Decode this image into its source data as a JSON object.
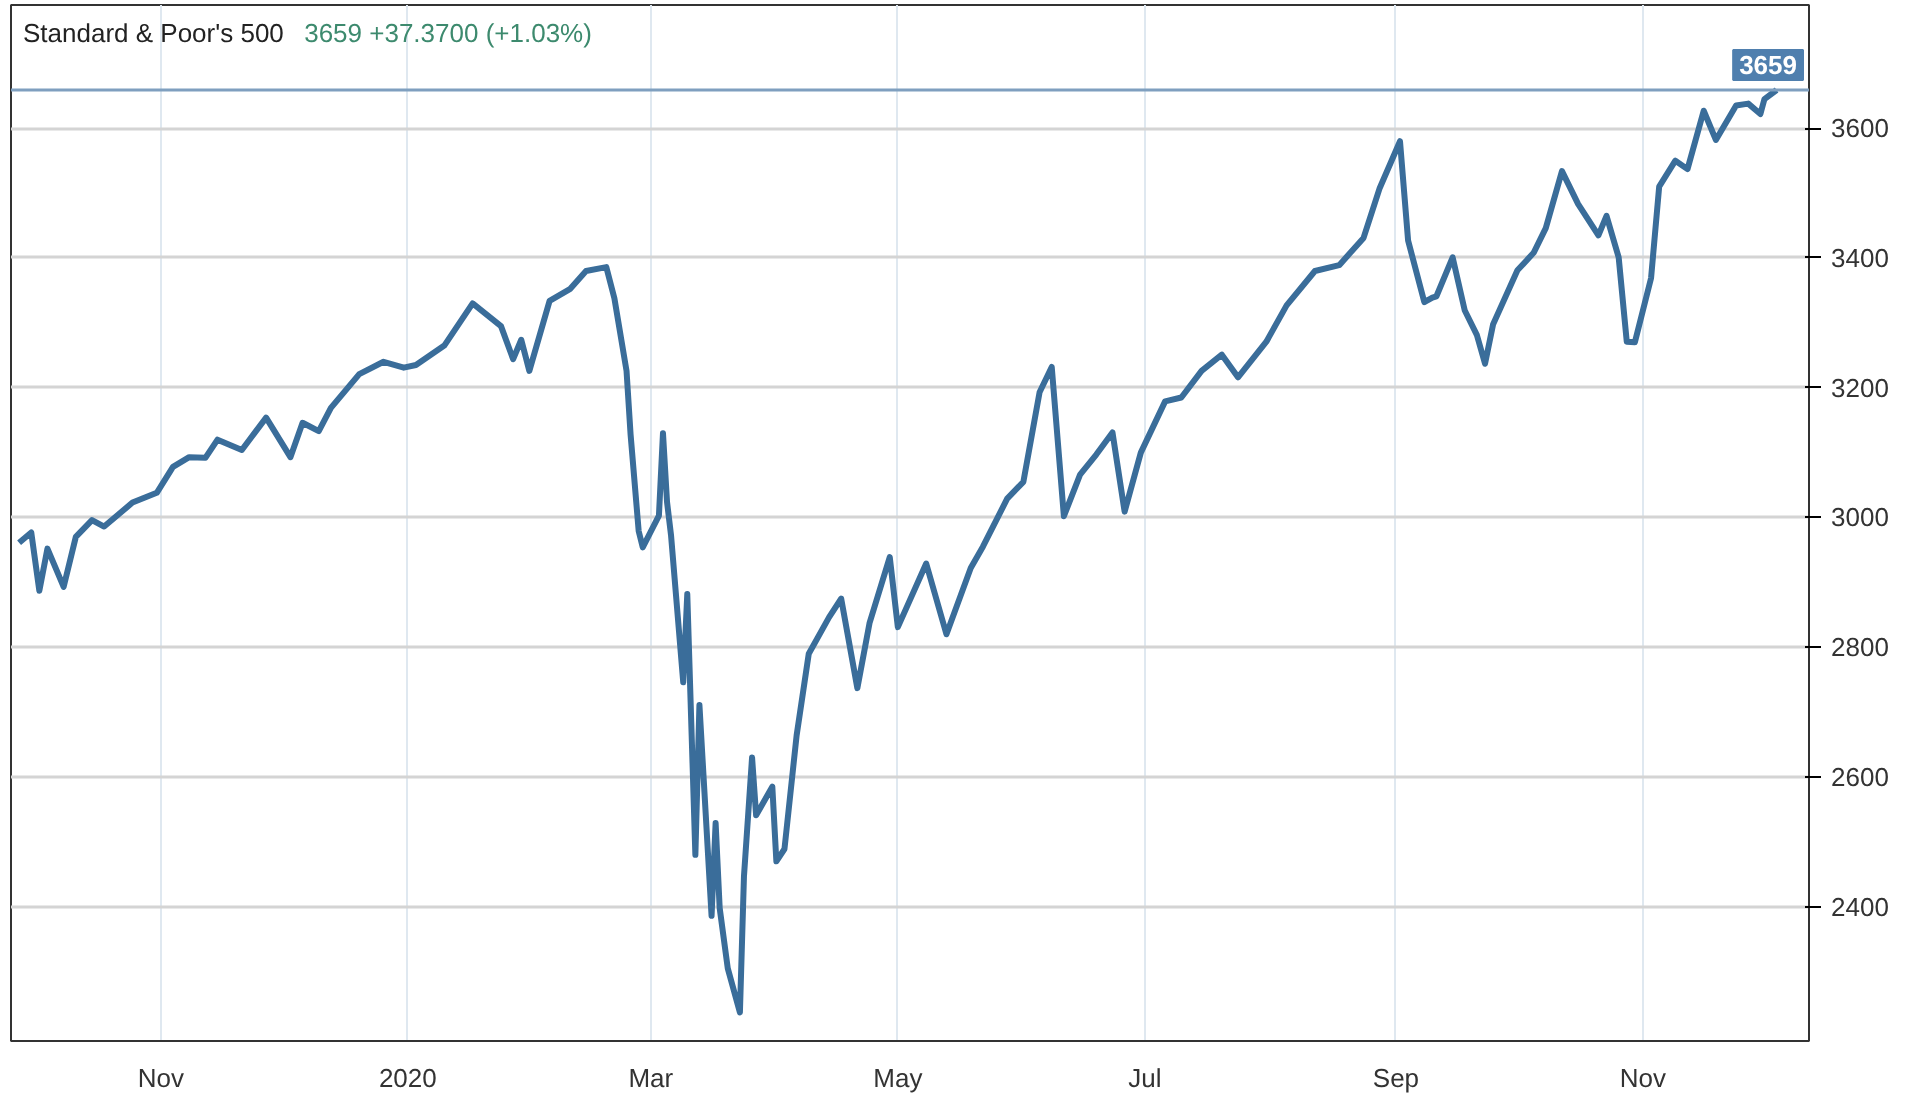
{
  "chart_data": {
    "type": "line",
    "title": "Standard & Poor's 500",
    "subtitle": "3659  +37.3700 (+1.03%)",
    "x": [
      "2019-09-27",
      "2019-09-30",
      "2019-10-02",
      "2019-10-04",
      "2019-10-08",
      "2019-10-11",
      "2019-10-15",
      "2019-10-18",
      "2019-10-25",
      "2019-10-31",
      "2019-11-04",
      "2019-11-08",
      "2019-11-12",
      "2019-11-15",
      "2019-11-21",
      "2019-11-27",
      "2019-12-03",
      "2019-12-06",
      "2019-12-10",
      "2019-12-13",
      "2019-12-20",
      "2019-12-26",
      "2019-12-31",
      "2020-01-03",
      "2020-01-10",
      "2020-01-17",
      "2020-01-24",
      "2020-01-27",
      "2020-01-29",
      "2020-01-31",
      "2020-02-05",
      "2020-02-10",
      "2020-02-14",
      "2020-02-19",
      "2020-02-21",
      "2020-02-24",
      "2020-02-25",
      "2020-02-27",
      "2020-02-28",
      "2020-03-03",
      "2020-03-04",
      "2020-03-05",
      "2020-03-06",
      "2020-03-09",
      "2020-03-10",
      "2020-03-12",
      "2020-03-13",
      "2020-03-16",
      "2020-03-17",
      "2020-03-18",
      "2020-03-20",
      "2020-03-23",
      "2020-03-24",
      "2020-03-26",
      "2020-03-27",
      "2020-03-31",
      "2020-04-01",
      "2020-04-03",
      "2020-04-06",
      "2020-04-09",
      "2020-04-14",
      "2020-04-17",
      "2020-04-21",
      "2020-04-24",
      "2020-04-29",
      "2020-05-01",
      "2020-05-08",
      "2020-05-13",
      "2020-05-19",
      "2020-05-22",
      "2020-05-28",
      "2020-06-01",
      "2020-06-05",
      "2020-06-08",
      "2020-06-11",
      "2020-06-15",
      "2020-06-19",
      "2020-06-23",
      "2020-06-26",
      "2020-06-30",
      "2020-07-06",
      "2020-07-10",
      "2020-07-15",
      "2020-07-20",
      "2020-07-24",
      "2020-07-31",
      "2020-08-05",
      "2020-08-12",
      "2020-08-18",
      "2020-08-24",
      "2020-08-28",
      "2020-09-02",
      "2020-09-04",
      "2020-09-08",
      "2020-09-10",
      "2020-09-11",
      "2020-09-15",
      "2020-09-18",
      "2020-09-21",
      "2020-09-23",
      "2020-09-25",
      "2020-10-01",
      "2020-10-05",
      "2020-10-08",
      "2020-10-12",
      "2020-10-16",
      "2020-10-21",
      "2020-10-23",
      "2020-10-26",
      "2020-10-28",
      "2020-10-30",
      "2020-11-03",
      "2020-11-05",
      "2020-11-09",
      "2020-11-12",
      "2020-11-16",
      "2020-11-19",
      "2020-11-24",
      "2020-11-27",
      "2020-11-30",
      "2020-12-01",
      "2020-12-04"
    ],
    "series": [
      {
        "color": "#3a6d9a",
        "values": [
          2961,
          2977,
          2887,
          2952,
          2893,
          2970,
          2996,
          2986,
          3023,
          3038,
          3078,
          3093,
          3092,
          3120,
          3104,
          3154,
          3093,
          3146,
          3133,
          3169,
          3221,
          3240,
          3231,
          3235,
          3265,
          3330,
          3295,
          3244,
          3274,
          3226,
          3334,
          3352,
          3380,
          3386,
          3338,
          3226,
          3128,
          2979,
          2954,
          3003,
          3130,
          3024,
          2972,
          2746,
          2882,
          2480,
          2711,
          2386,
          2529,
          2398,
          2305,
          2237,
          2447,
          2630,
          2541,
          2585,
          2470,
          2489,
          2664,
          2790,
          2846,
          2875,
          2737,
          2837,
          2939,
          2831,
          2929,
          2820,
          2922,
          2955,
          3029,
          3055,
          3193,
          3232,
          3002,
          3066,
          3097,
          3131,
          3009,
          3100,
          3179,
          3185,
          3226,
          3251,
          3216,
          3271,
          3327,
          3380,
          3389,
          3431,
          3508,
          3580,
          3427,
          3332,
          3339,
          3341,
          3401,
          3319,
          3281,
          3237,
          3298,
          3381,
          3408,
          3446,
          3534,
          3483,
          3435,
          3465,
          3401,
          3271,
          3270,
          3369,
          3510,
          3550,
          3537,
          3627,
          3582,
          3635,
          3638,
          3622,
          3645,
          3659
        ]
      }
    ],
    "xlim": [
      "2019-09-25",
      "2020-12-12"
    ],
    "ylim": [
      2193,
      3790
    ],
    "xticks": [
      {
        "value": "2019-11-01",
        "label": "Nov"
      },
      {
        "value": "2020-01-01",
        "label": "2020"
      },
      {
        "value": "2020-03-01",
        "label": "Mar"
      },
      {
        "value": "2020-05-01",
        "label": "May"
      },
      {
        "value": "2020-07-01",
        "label": "Jul"
      },
      {
        "value": "2020-09-01",
        "label": "Sep"
      },
      {
        "value": "2020-11-01",
        "label": "Nov"
      }
    ],
    "yticks": [
      2400,
      2600,
      2800,
      3000,
      3200,
      3400,
      3600
    ],
    "ref_lines": [
      {
        "axis": "y",
        "value": 3659,
        "label": "3659",
        "color": "#7f9fbf"
      }
    ],
    "grid": true
  }
}
